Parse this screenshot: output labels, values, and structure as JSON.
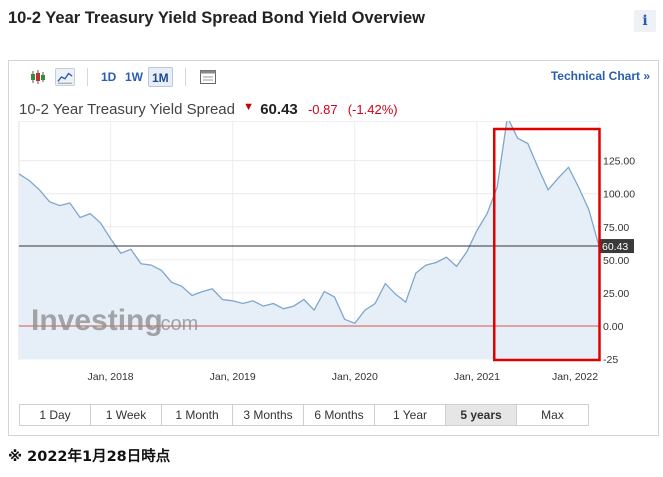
{
  "page": {
    "title": "10-2 Year Treasury Yield Spread Bond Yield Overview",
    "info_label": "i",
    "footnote": "※ 2022年1月28日時点"
  },
  "toolbar": {
    "ranges": [
      "1D",
      "1W",
      "1M"
    ],
    "active_range": "1M",
    "technical_chart_label": "Technical Chart »",
    "icons": [
      "candlestick-icon",
      "line-chart-icon",
      "calendar-icon"
    ]
  },
  "quote": {
    "name": "10-2 Year Treasury Yield Spread",
    "price": "60.43",
    "change": "-0.87",
    "change_pct": "(-1.42%)"
  },
  "periods": {
    "items": [
      "1 Day",
      "1 Week",
      "1 Month",
      "3 Months",
      "6 Months",
      "1 Year",
      "5 years",
      "Max"
    ],
    "active": "5 years"
  },
  "watermark": {
    "text": "Investing",
    "suffix": ".com"
  },
  "colors": {
    "line": "#7fa6cc",
    "area": "#e6eff8",
    "reference_line": "#333333",
    "zero_line": "#d9534f",
    "highlight_box": "#e00000",
    "accent": "#2a5db0"
  },
  "chart_data": {
    "type": "area",
    "series": [
      {
        "x": [
          "2017-04",
          "2017-05",
          "2017-06",
          "2017-07",
          "2017-08",
          "2017-09",
          "2017-10",
          "2017-11",
          "2017-12",
          "2018-01",
          "2018-02",
          "2018-03",
          "2018-04",
          "2018-05",
          "2018-06",
          "2018-07",
          "2018-08",
          "2018-09",
          "2018-10",
          "2018-11",
          "2018-12",
          "2019-01",
          "2019-02",
          "2019-03",
          "2019-04",
          "2019-05",
          "2019-06",
          "2019-07",
          "2019-08",
          "2019-09",
          "2019-10",
          "2019-11",
          "2019-12",
          "2020-01",
          "2020-02",
          "2020-03",
          "2020-04",
          "2020-05",
          "2020-06",
          "2020-07",
          "2020-08",
          "2020-09",
          "2020-10",
          "2020-11",
          "2020-12",
          "2021-01",
          "2021-02",
          "2021-03",
          "2021-04",
          "2021-05",
          "2021-06",
          "2021-07",
          "2021-08",
          "2021-09",
          "2021-10",
          "2021-11",
          "2021-12",
          "2022-01"
        ],
        "values": [
          115,
          110,
          103,
          94,
          91,
          93,
          82,
          85,
          78,
          66,
          55,
          58,
          47,
          46,
          42,
          33,
          30,
          23,
          26,
          28,
          20,
          19,
          17,
          19,
          15,
          17,
          13,
          15,
          20,
          12,
          26,
          22,
          5,
          2,
          12,
          17,
          32,
          24,
          18,
          40,
          46,
          48,
          52,
          45,
          56,
          72,
          85,
          105,
          158,
          142,
          138,
          120,
          103,
          112,
          120,
          105,
          88,
          60.43
        ]
      }
    ],
    "x_ticks": [
      "Jan, 2018",
      "Jan, 2019",
      "Jan, 2020",
      "Jan, 2021",
      "Jan, 2022"
    ],
    "y_ticks": [
      125.0,
      100.0,
      75.0,
      50.0,
      25.0,
      0.0,
      -25.0
    ],
    "ylim": [
      -25,
      155
    ],
    "last_value": 60.43,
    "last_value_label": "60.43",
    "reference_lines": [
      60.43,
      0
    ],
    "highlight_range": [
      "2021-03",
      "2022-01"
    ],
    "grid": true,
    "y_axis_side": "right"
  }
}
